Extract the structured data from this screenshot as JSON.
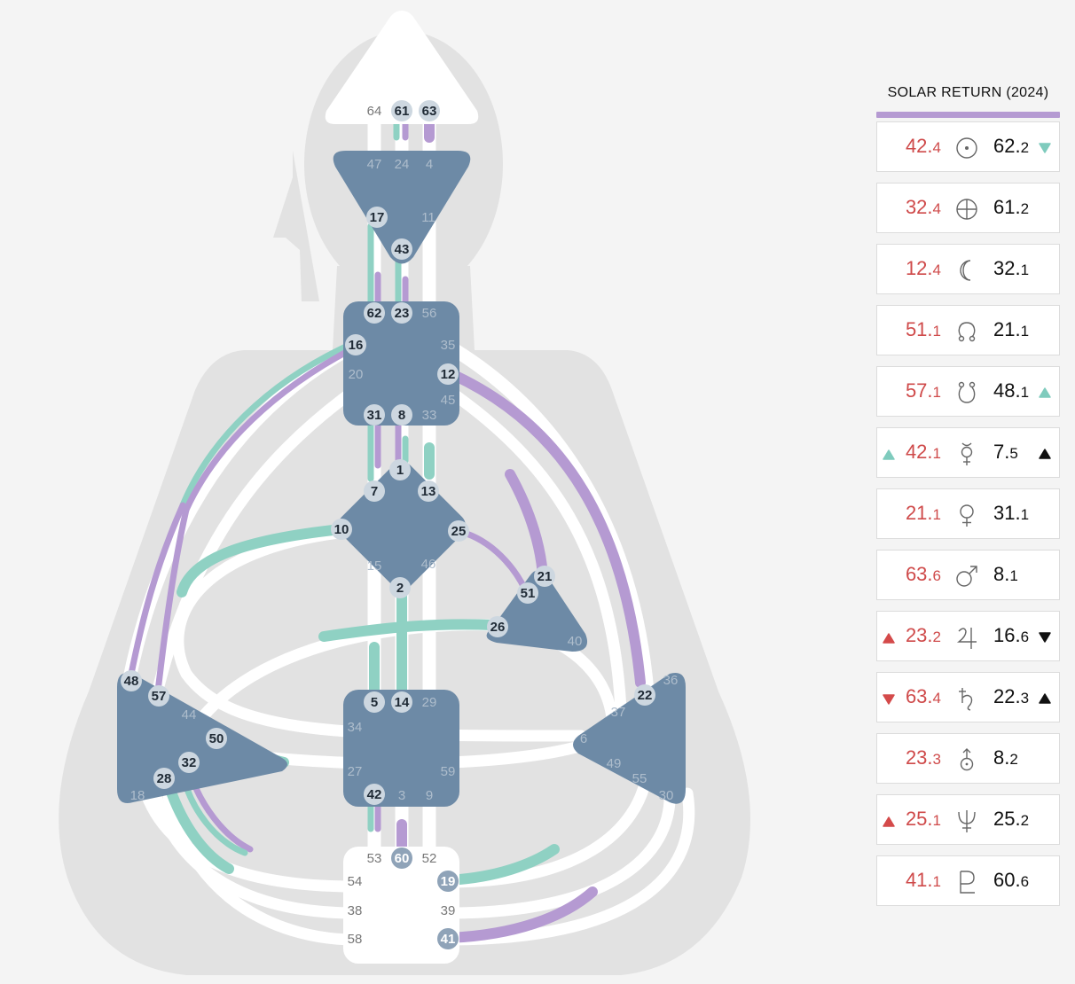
{
  "panel": {
    "title": "SOLAR RETURN (2024)",
    "accent_color": "#b59ad2",
    "rows": [
      {
        "planet": "sun-icon",
        "left_main": "42.",
        "left_sub": "4",
        "right_main": "62.",
        "right_sub": "2",
        "left_mark": "",
        "right_mark": "teal-down"
      },
      {
        "planet": "earth-icon",
        "left_main": "32.",
        "left_sub": "4",
        "right_main": "61.",
        "right_sub": "2",
        "left_mark": "",
        "right_mark": ""
      },
      {
        "planet": "moon-icon",
        "left_main": "12.",
        "left_sub": "4",
        "right_main": "32.",
        "right_sub": "1",
        "left_mark": "",
        "right_mark": ""
      },
      {
        "planet": "north-node-icon",
        "left_main": "51.",
        "left_sub": "1",
        "right_main": "21.",
        "right_sub": "1",
        "left_mark": "",
        "right_mark": ""
      },
      {
        "planet": "south-node-icon",
        "left_main": "57.",
        "left_sub": "1",
        "right_main": "48.",
        "right_sub": "1",
        "left_mark": "",
        "right_mark": "teal-up"
      },
      {
        "planet": "mercury-icon",
        "left_main": "42.",
        "left_sub": "1",
        "right_main": "7.",
        "right_sub": "5",
        "left_mark": "teal-up",
        "right_mark": "black-up"
      },
      {
        "planet": "venus-icon",
        "left_main": "21.",
        "left_sub": "1",
        "right_main": "31.",
        "right_sub": "1",
        "left_mark": "",
        "right_mark": ""
      },
      {
        "planet": "mars-icon",
        "left_main": "63.",
        "left_sub": "6",
        "right_main": "8.",
        "right_sub": "1",
        "left_mark": "",
        "right_mark": ""
      },
      {
        "planet": "jupiter-icon",
        "left_main": "23.",
        "left_sub": "2",
        "right_main": "16.",
        "right_sub": "6",
        "left_mark": "red-up",
        "right_mark": "black-down"
      },
      {
        "planet": "saturn-icon",
        "left_main": "63.",
        "left_sub": "4",
        "right_main": "22.",
        "right_sub": "3",
        "left_mark": "red-down",
        "right_mark": "black-up"
      },
      {
        "planet": "uranus-icon",
        "left_main": "23.",
        "left_sub": "3",
        "right_main": "8.",
        "right_sub": "2",
        "left_mark": "",
        "right_mark": ""
      },
      {
        "planet": "neptune-icon",
        "left_main": "25.",
        "left_sub": "1",
        "right_main": "25.",
        "right_sub": "2",
        "left_mark": "red-up",
        "right_mark": ""
      },
      {
        "planet": "pluto-icon",
        "left_main": "41.",
        "left_sub": "1",
        "right_main": "60.",
        "right_sub": "6",
        "left_mark": "",
        "right_mark": ""
      }
    ]
  },
  "bodygraph": {
    "colors": {
      "center": "#6d8aa6",
      "teal": "#8fd1c3",
      "purple": "#b59ad2",
      "channel": "#ffffff",
      "silhouette": "#e2e2e2",
      "gate_active": "#cdd7e0",
      "gate_inactive": "#a6b6c5"
    },
    "gates": {
      "head": [
        "64",
        "61",
        "63"
      ],
      "ajna": [
        "47",
        "24",
        "4",
        "17",
        "11",
        "43"
      ],
      "throat": [
        "62",
        "23",
        "56",
        "16",
        "35",
        "20",
        "12",
        "45",
        "31",
        "8",
        "33"
      ],
      "g": [
        "1",
        "7",
        "13",
        "10",
        "25",
        "15",
        "46",
        "2"
      ],
      "ego": [
        "21",
        "51",
        "26",
        "40"
      ],
      "spleen": [
        "48",
        "57",
        "44",
        "50",
        "32",
        "28",
        "18"
      ],
      "sacral": [
        "5",
        "14",
        "29",
        "34",
        "27",
        "59",
        "42",
        "3",
        "9"
      ],
      "solar_plexus": [
        "36",
        "22",
        "37",
        "6",
        "49",
        "55",
        "30"
      ],
      "root": [
        "53",
        "60",
        "52",
        "54",
        "19",
        "38",
        "39",
        "58",
        "41"
      ]
    }
  }
}
